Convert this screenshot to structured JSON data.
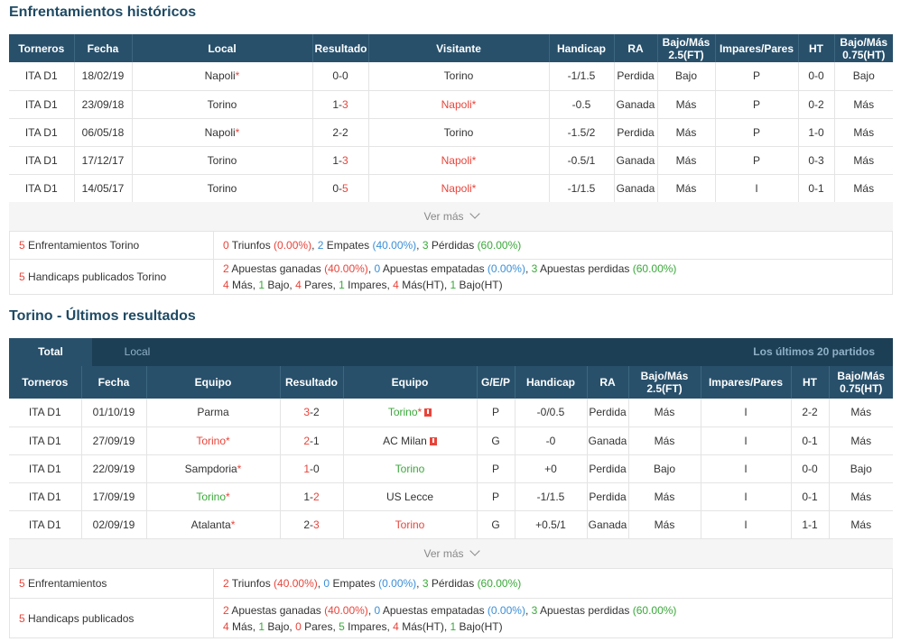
{
  "h2h": {
    "title": "Enfrentamientos históricos",
    "headers": [
      "Torneros",
      "Fecha",
      "Local",
      "Resultado",
      "Visitante",
      "Handicap",
      "RA",
      "Bajo/Más 2.5(FT)",
      "Impares/Pares",
      "HT",
      "Bajo/Más 0.75(HT)"
    ],
    "rows": [
      {
        "league": "ITA D1",
        "date": "18/02/19",
        "home": "Napoli",
        "home_star": "*",
        "score_h": "0",
        "score_sep": "-",
        "score_a": "0",
        "away": "Torino",
        "away_star": "",
        "handicap": "-1/1.5",
        "ra": "Perdida",
        "ou": "Bajo",
        "oe": "P",
        "ht": "0-0",
        "ou_ht": "Bajo"
      },
      {
        "league": "ITA D1",
        "date": "23/09/18",
        "home": "Torino",
        "home_star": "",
        "score_h": "1",
        "score_sep": "-",
        "score_a": "3",
        "away": "Napoli",
        "away_star": "*",
        "handicap": "-0.5",
        "ra": "Ganada",
        "ou": "Más",
        "oe": "P",
        "ht": "0-2",
        "ou_ht": "Más"
      },
      {
        "league": "ITA D1",
        "date": "06/05/18",
        "home": "Napoli",
        "home_star": "*",
        "score_h": "2",
        "score_sep": "-",
        "score_a": "2",
        "away": "Torino",
        "away_star": "",
        "handicap": "-1.5/2",
        "ra": "Perdida",
        "ou": "Más",
        "oe": "P",
        "ht": "1-0",
        "ou_ht": "Más"
      },
      {
        "league": "ITA D1",
        "date": "17/12/17",
        "home": "Torino",
        "home_star": "",
        "score_h": "1",
        "score_sep": "-",
        "score_a": "3",
        "away": "Napoli",
        "away_star": "*",
        "handicap": "-0.5/1",
        "ra": "Ganada",
        "ou": "Más",
        "oe": "P",
        "ht": "0-3",
        "ou_ht": "Más"
      },
      {
        "league": "ITA D1",
        "date": "14/05/17",
        "home": "Torino",
        "home_star": "",
        "score_h": "0",
        "score_sep": "-",
        "score_a": "5",
        "away": "Napoli",
        "away_star": "*",
        "handicap": "-1/1.5",
        "ra": "Ganada",
        "ou": "Más",
        "oe": "I",
        "ht": "0-1",
        "ou_ht": "Más"
      }
    ],
    "ver_mas": "Ver más",
    "summary1": {
      "label_num": "5",
      "label_text": " Enfrentamientos Torino",
      "wins": "0",
      "wins_text": " Triunfos ",
      "wins_pct": "(0.00%)",
      "draws": "2",
      "draws_text": " Empates ",
      "draws_pct": "(40.00%)",
      "losses": "3",
      "losses_text": " Pérdidas ",
      "losses_pct": "(60.00%)"
    },
    "summary2": {
      "label_num": "5",
      "label_text": " Handicaps publicados Torino",
      "won": "2",
      "won_text": " Apuestas ganadas ",
      "won_pct": "(40.00%)",
      "tied": "0",
      "tied_text": " Apuestas empatadas ",
      "tied_pct": "(0.00%)",
      "lost": "3",
      "lost_text": " Apuestas perdidas ",
      "lost_pct": "(60.00%)",
      "mas": "4",
      "mas_text": " Más, ",
      "bajo": "1",
      "bajo_text": " Bajo, ",
      "pares": "4",
      "pares_text": " Pares, ",
      "impares": "1",
      "impares_text": " Impares, ",
      "mas_ht": "4",
      "mas_ht_text": " Más(HT), ",
      "bajo_ht": "1",
      "bajo_ht_text": " Bajo(HT)"
    }
  },
  "recent": {
    "title": "Torino - Últimos resultados",
    "tabs": {
      "total": "Total",
      "local": "Local",
      "right": "Los últimos 20 partidos"
    },
    "headers": [
      "Torneros",
      "Fecha",
      "Equipo",
      "Resultado",
      "Equipo",
      "G/E/P",
      "Handicap",
      "RA",
      "Bajo/Más 2.5(FT)",
      "Impares/Pares",
      "HT",
      "Bajo/Más 0.75(HT)"
    ],
    "rows": [
      {
        "league": "ITA D1",
        "date": "01/10/19",
        "home": "Parma",
        "home_star": "",
        "home_color": "",
        "score_h": "3",
        "score_sep": "-",
        "score_a": "2",
        "away": "Torino",
        "away_star": "*",
        "away_color": "green",
        "away_flag": true,
        "gep": "P",
        "handicap": "-0/0.5",
        "ra": "Perdida",
        "ou": "Más",
        "oe": "I",
        "ht": "2-2",
        "ou_ht": "Más"
      },
      {
        "league": "ITA D1",
        "date": "27/09/19",
        "home": "Torino",
        "home_star": "*",
        "home_color": "red",
        "score_h": "2",
        "score_sep": "-",
        "score_a": "1",
        "away": "AC Milan",
        "away_star": "",
        "away_color": "",
        "away_flag": true,
        "gep": "G",
        "handicap": "-0",
        "ra": "Ganada",
        "ou": "Más",
        "oe": "I",
        "ht": "0-1",
        "ou_ht": "Más"
      },
      {
        "league": "ITA D1",
        "date": "22/09/19",
        "home": "Sampdoria",
        "home_star": "*",
        "home_color": "",
        "score_h": "1",
        "score_sep": "-",
        "score_a": "0",
        "away": "Torino",
        "away_star": "",
        "away_color": "green",
        "away_flag": false,
        "gep": "P",
        "handicap": "+0",
        "ra": "Perdida",
        "ou": "Bajo",
        "oe": "I",
        "ht": "0-0",
        "ou_ht": "Bajo"
      },
      {
        "league": "ITA D1",
        "date": "17/09/19",
        "home": "Torino",
        "home_star": "*",
        "home_color": "green",
        "score_h": "1",
        "score_sep": "-",
        "score_a": "2",
        "away": "US Lecce",
        "away_star": "",
        "away_color": "",
        "away_flag": false,
        "gep": "P",
        "handicap": "-1/1.5",
        "ra": "Perdida",
        "ou": "Más",
        "oe": "I",
        "ht": "0-1",
        "ou_ht": "Más"
      },
      {
        "league": "ITA D1",
        "date": "02/09/19",
        "home": "Atalanta",
        "home_star": "*",
        "home_color": "",
        "score_h": "2",
        "score_sep": "-",
        "score_a": "3",
        "away": "Torino",
        "away_star": "",
        "away_color": "red",
        "away_flag": false,
        "gep": "G",
        "handicap": "+0.5/1",
        "ra": "Ganada",
        "ou": "Más",
        "oe": "I",
        "ht": "1-1",
        "ou_ht": "Más"
      }
    ],
    "ver_mas": "Ver más",
    "summary1": {
      "label_num": "5",
      "label_text": " Enfrentamientos",
      "wins": "2",
      "wins_text": " Triunfos ",
      "wins_pct": "(40.00%)",
      "draws": "0",
      "draws_text": " Empates ",
      "draws_pct": "(0.00%)",
      "losses": "3",
      "losses_text": " Pérdidas ",
      "losses_pct": "(60.00%)"
    },
    "summary2": {
      "label_num": "5",
      "label_text": " Handicaps publicados",
      "won": "2",
      "won_text": " Apuestas ganadas ",
      "won_pct": "(40.00%)",
      "tied": "0",
      "tied_text": " Apuestas empatadas ",
      "tied_pct": "(0.00%)",
      "lost": "3",
      "lost_text": " Apuestas perdidas ",
      "lost_pct": "(60.00%)",
      "mas": "4",
      "mas_text": " Más, ",
      "bajo": "1",
      "bajo_text": " Bajo, ",
      "pares": "0",
      "pares_text": " Pares, ",
      "impares": "5",
      "impares_text": " Impares, ",
      "mas_ht": "4",
      "mas_ht_text": " Más(HT), ",
      "bajo_ht": "1",
      "bajo_ht_text": " Bajo(HT)"
    }
  },
  "colors": {
    "header_bg": "#28506b",
    "win": "#3aa83a",
    "loss": "#e8443a",
    "draw": "#3b8fd6",
    "link": "#2a6dbb"
  }
}
